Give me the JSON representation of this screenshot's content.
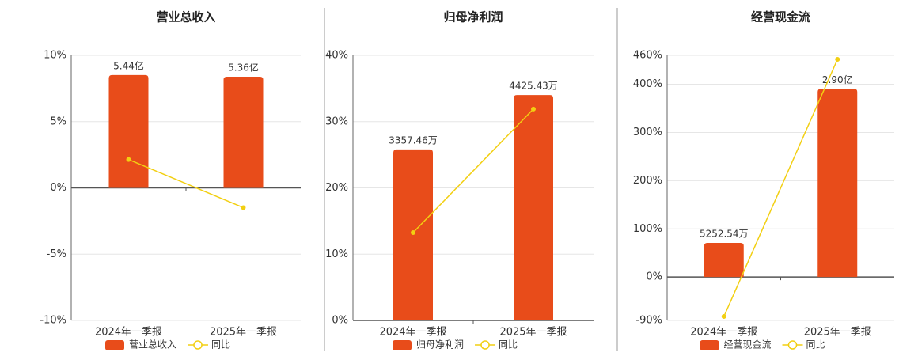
{
  "chart_data": [
    {
      "type": "combo",
      "title": "营业总收入",
      "categories": [
        "2024年一季报",
        "2025年一季报"
      ],
      "series": [
        {
          "name": "营业总收入",
          "type": "bar",
          "axis": "y2",
          "color": "#e84c1a",
          "values": [
            544000000,
            536000000
          ],
          "value_labels": [
            "5.44亿",
            "5.36亿"
          ]
        },
        {
          "name": "同比",
          "type": "line",
          "color": "#f2cf12",
          "values": [
            2.14,
            -1.49
          ]
        }
      ],
      "ylim": [
        -10,
        10
      ],
      "yticks": [
        {
          "value": -10,
          "label": "-10%"
        },
        {
          "value": -5,
          "label": "-5%"
        },
        {
          "value": 0,
          "label": "0%"
        },
        {
          "value": 5,
          "label": "5%"
        },
        {
          "value": 10,
          "label": "10%"
        }
      ],
      "y2lim": [
        -639000000,
        639000000
      ],
      "grid": true,
      "legend": "bottom"
    },
    {
      "type": "combo",
      "title": "归母净利润",
      "categories": [
        "2024年一季报",
        "2025年一季报"
      ],
      "series": [
        {
          "name": "归母净利润",
          "type": "bar",
          "axis": "y2",
          "color": "#e84c1a",
          "values": [
            33574600,
            44254300
          ],
          "value_labels": [
            "3357.46万",
            "4425.43万"
          ]
        },
        {
          "name": "同比",
          "type": "line",
          "color": "#f2cf12",
          "values": [
            13.25,
            31.9
          ]
        }
      ],
      "ylim": [
        0,
        40
      ],
      "yticks": [
        {
          "value": 0,
          "label": "0%"
        },
        {
          "value": 10,
          "label": "10%"
        },
        {
          "value": 20,
          "label": "20%"
        },
        {
          "value": 30,
          "label": "30%"
        },
        {
          "value": 40,
          "label": "40%"
        }
      ],
      "y2lim": [
        0,
        52050000
      ],
      "grid": true,
      "legend": "bottom"
    },
    {
      "type": "combo",
      "title": "经营现金流",
      "categories": [
        "2024年一季报",
        "2025年一季报"
      ],
      "series": [
        {
          "name": "经营现金流",
          "type": "bar",
          "axis": "y2",
          "color": "#e84c1a",
          "values": [
            52525400,
            290000000
          ],
          "value_labels": [
            "5252.54万",
            "2.90亿"
          ]
        },
        {
          "name": "同比",
          "type": "line",
          "color": "#f2cf12",
          "values": [
            -81.8,
            451.8
          ]
        }
      ],
      "ylim": [
        -90,
        460
      ],
      "yticks": [
        {
          "value": -90,
          "label": "-90%"
        },
        {
          "value": 0,
          "label": "0%"
        },
        {
          "value": 100,
          "label": "100%"
        },
        {
          "value": 200,
          "label": "200%"
        },
        {
          "value": 300,
          "label": "300%"
        },
        {
          "value": 400,
          "label": "400%"
        },
        {
          "value": 460,
          "label": "460%"
        }
      ],
      "y2lim": [
        -67000000,
        341600000
      ],
      "grid": true,
      "legend": "bottom"
    }
  ]
}
